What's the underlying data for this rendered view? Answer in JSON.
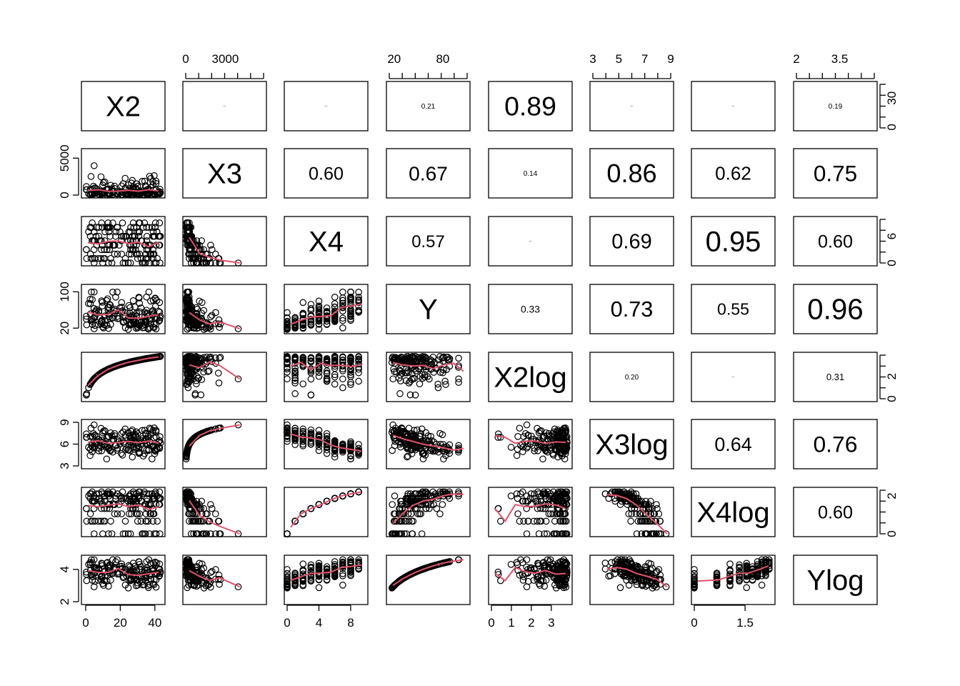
{
  "chart_data": {
    "type": "scatter",
    "variables": [
      "X2",
      "X3",
      "X4",
      "Y",
      "X2log",
      "X3log",
      "X4log",
      "Ylog"
    ],
    "ranges": {
      "X2": [
        -0.8,
        44.2
      ],
      "X3": [
        0,
        5900
      ],
      "X4": [
        0,
        9.8
      ],
      "Y": [
        14,
        110
      ],
      "X2log": [
        0,
        3.9
      ],
      "X3log": [
        3,
        9
      ],
      "X4log": [
        0,
        2.3
      ],
      "Ylog": [
        2.0,
        4.7
      ]
    },
    "ticks": {
      "X2": [
        0,
        20,
        40
      ],
      "X3": [
        0,
        3000
      ],
      "X4": [
        0,
        4,
        8
      ],
      "Y": [
        20,
        80
      ],
      "X2log": [
        0,
        1,
        2,
        3
      ],
      "X3log": [
        3,
        5,
        7,
        9
      ],
      "X4log": [
        0.0,
        1.5
      ],
      "Ylog": [
        2.0,
        3.5
      ]
    },
    "left_ticks": {
      "X3": [
        0,
        5000
      ],
      "Y": [
        20,
        100
      ],
      "X3log": [
        3,
        6,
        9
      ],
      "Ylog": [
        2.0,
        4.0
      ]
    },
    "right_ticks": {
      "X2": [
        0,
        30
      ],
      "X4": [
        0,
        6
      ],
      "X2log": [
        0,
        2
      ],
      "X4log": [
        0.0,
        2.0
      ]
    },
    "correlations": [
      {
        "row": 0,
        "col": 1,
        "label": ""
      },
      {
        "row": 0,
        "col": 2,
        "label": ""
      },
      {
        "row": 0,
        "col": 3,
        "label": "0.21"
      },
      {
        "row": 0,
        "col": 4,
        "label": "0.89"
      },
      {
        "row": 0,
        "col": 5,
        "label": ""
      },
      {
        "row": 0,
        "col": 6,
        "label": ""
      },
      {
        "row": 0,
        "col": 7,
        "label": "0.19"
      },
      {
        "row": 1,
        "col": 2,
        "label": "0.60"
      },
      {
        "row": 1,
        "col": 3,
        "label": "0.67"
      },
      {
        "row": 1,
        "col": 4,
        "label": "0.14"
      },
      {
        "row": 1,
        "col": 5,
        "label": "0.86"
      },
      {
        "row": 1,
        "col": 6,
        "label": "0.62"
      },
      {
        "row": 1,
        "col": 7,
        "label": "0.75"
      },
      {
        "row": 2,
        "col": 3,
        "label": "0.57"
      },
      {
        "row": 2,
        "col": 4,
        "label": ""
      },
      {
        "row": 2,
        "col": 5,
        "label": "0.69"
      },
      {
        "row": 2,
        "col": 6,
        "label": "0.95"
      },
      {
        "row": 2,
        "col": 7,
        "label": "0.60"
      },
      {
        "row": 3,
        "col": 4,
        "label": "0.33"
      },
      {
        "row": 3,
        "col": 5,
        "label": "0.73"
      },
      {
        "row": 3,
        "col": 6,
        "label": "0.55"
      },
      {
        "row": 3,
        "col": 7,
        "label": "0.96"
      },
      {
        "row": 4,
        "col": 5,
        "label": "0.20"
      },
      {
        "row": 4,
        "col": 6,
        "label": ""
      },
      {
        "row": 4,
        "col": 7,
        "label": "0.31"
      },
      {
        "row": 5,
        "col": 6,
        "label": "0.64"
      },
      {
        "row": 5,
        "col": 7,
        "label": "0.76"
      },
      {
        "row": 6,
        "col": 7,
        "label": "0.60"
      }
    ],
    "smoother_color": "#DF536B",
    "point_color": "#000000",
    "point_shape": "open-circle",
    "grid": false,
    "legend": "none"
  }
}
